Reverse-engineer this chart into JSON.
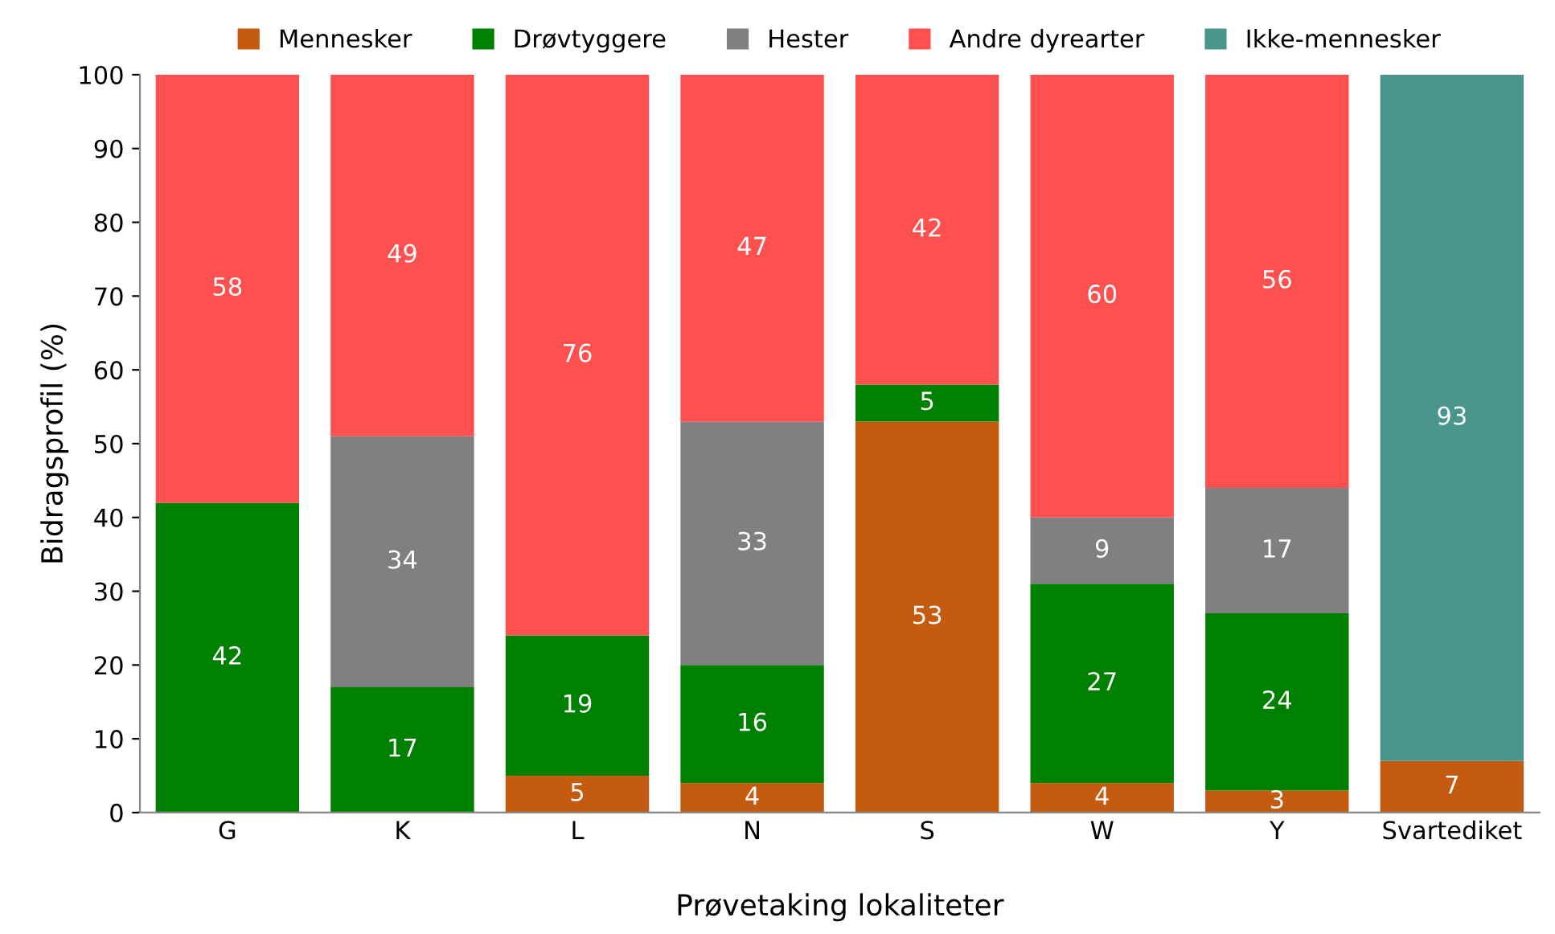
{
  "chart_data": {
    "type": "bar",
    "stacked": true,
    "xlabel": "Prøvetaking lokaliteter",
    "ylabel": "Bidragsprofil (%)",
    "categories": [
      "G",
      "K",
      "L",
      "N",
      "S",
      "W",
      "Y",
      "Svartediket"
    ],
    "series": [
      {
        "name": "Mennesker",
        "color": "#c55a11",
        "values": [
          null,
          null,
          5,
          4,
          53,
          4,
          3,
          7
        ]
      },
      {
        "name": "Drøvtyggere",
        "color": "#008000",
        "values": [
          42,
          17,
          19,
          16,
          5,
          27,
          24,
          null
        ]
      },
      {
        "name": "Hester",
        "color": "#808080",
        "values": [
          null,
          34,
          null,
          33,
          null,
          9,
          17,
          null
        ]
      },
      {
        "name": "Andre dyrearter",
        "color": "#ff5050",
        "values": [
          58,
          49,
          76,
          47,
          42,
          60,
          56,
          null
        ]
      },
      {
        "name": "Ikke-mennesker",
        "color": "#4a968f",
        "values": [
          null,
          null,
          null,
          null,
          null,
          null,
          null,
          93
        ]
      }
    ],
    "ylim": [
      0,
      100
    ],
    "yticks": [
      0,
      10,
      20,
      30,
      40,
      50,
      60,
      70,
      80,
      90,
      100
    ],
    "data_labels": true,
    "grid": false,
    "legend": "top"
  }
}
